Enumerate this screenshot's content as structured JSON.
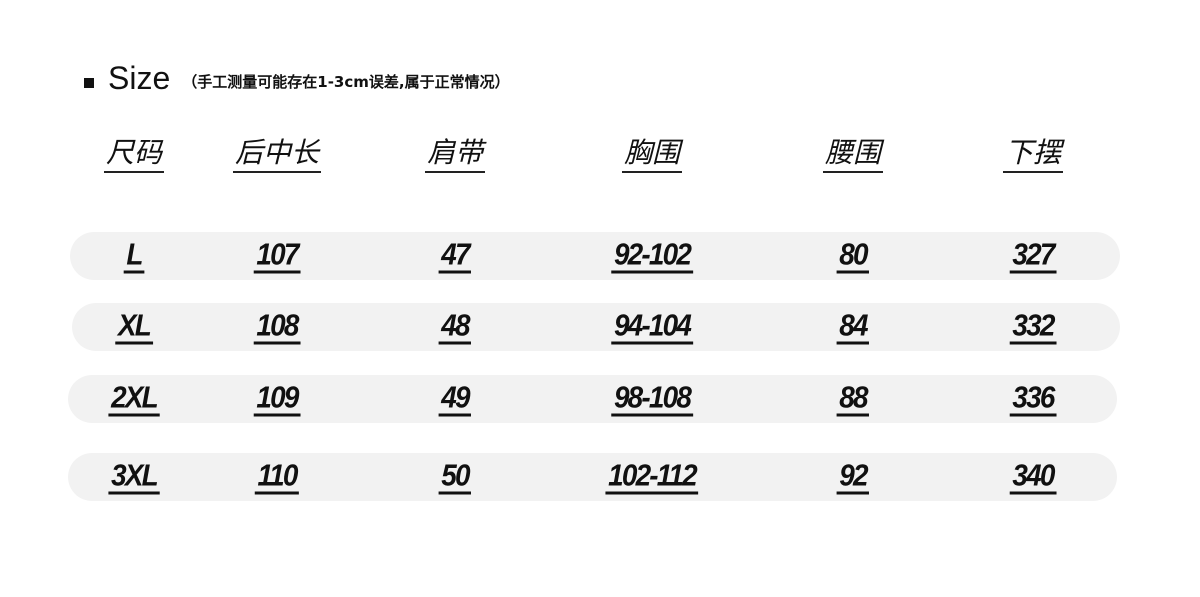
{
  "heading": {
    "label": "Size",
    "note": "（手工测量可能存在1-3cm误差,属于正常情况）"
  },
  "columns": [
    "尺码",
    "后中长",
    "肩带",
    "胸围",
    "腰围",
    "下摆"
  ],
  "rows": [
    [
      "L",
      "107",
      "47",
      "92-102",
      "80",
      "327"
    ],
    [
      "XL",
      "108",
      "48",
      "94-104",
      "84",
      "332"
    ],
    [
      "2XL",
      "109",
      "49",
      "98-108",
      "88",
      "336"
    ],
    [
      "3XL",
      "110",
      "50",
      "102-112",
      "92",
      "340"
    ]
  ],
  "colors": {
    "row_background": "#f2f2f2",
    "text": "#111111"
  }
}
